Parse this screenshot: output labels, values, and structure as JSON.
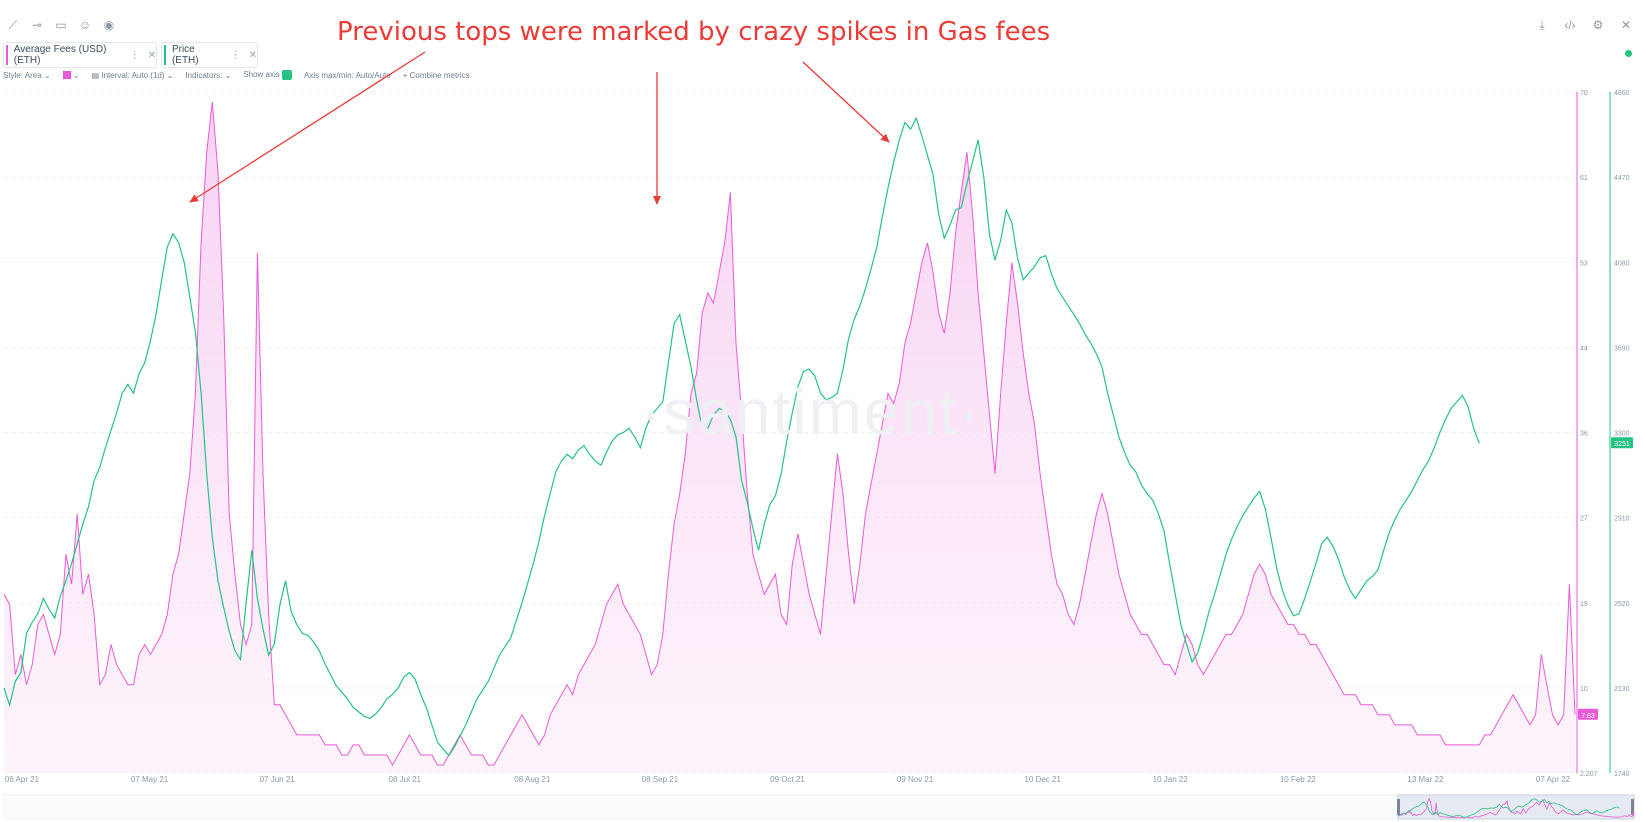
{
  "toolbar": {
    "icons": [
      "line-draw-icon",
      "horizontal-line-icon",
      "note-icon",
      "emoji-icon",
      "eye-icon"
    ],
    "right_icons": [
      "download-icon",
      "embed-code-icon",
      "settings-icon",
      "close-icon"
    ]
  },
  "tabs": [
    {
      "label": "Average Fees (USD) (ETH)",
      "color": "#e85bd8"
    },
    {
      "label": "Price (ETH)",
      "color": "#26c281"
    }
  ],
  "settings": {
    "style": "Style: Area",
    "interval": "Interval: Auto (1d)",
    "indicators": "Indicators:",
    "show_axis": "Show axis",
    "axis_minmax": "Axis max/min: Auto/Auto",
    "combine": "Combine metrics"
  },
  "annotation": "Previous tops were marked by crazy spikes in Gas fees",
  "watermark": "·santiment·",
  "chart_data": {
    "type": "area",
    "x_ticks": [
      "06 Apr 21",
      "07 May 21",
      "07 Jun 21",
      "08 Jul 21",
      "08 Aug 21",
      "08 Sep 21",
      "09 Oct 21",
      "09 Nov 21",
      "10 Dec 21",
      "10 Jan 22",
      "10 Feb 22",
      "13 Mar 22",
      "07 Apr 22"
    ],
    "fees_axis_ticks": [
      "70",
      "61",
      "53",
      "44",
      "36",
      "27",
      "19",
      "10",
      "2.207"
    ],
    "price_axis_ticks": [
      "4860",
      "4470",
      "4080",
      "3690",
      "3300",
      "2910",
      "2520",
      "2130",
      "1740"
    ],
    "fees_ylim": [
      2.207,
      70
    ],
    "price_ylim": [
      1740,
      4860
    ],
    "last_fee_label": "7.83",
    "last_price_label": "3251",
    "series": [
      {
        "name": "Average Fees (USD) (ETH)",
        "color": "#e85bd8",
        "values": [
          20,
          19,
          12,
          14,
          11,
          13,
          17,
          18,
          16,
          14,
          16,
          24,
          21,
          28,
          20,
          22,
          18,
          11,
          12,
          15,
          13,
          12,
          11,
          11,
          14,
          15,
          14,
          15,
          16,
          18,
          22,
          24,
          28,
          32,
          40,
          55,
          64,
          69,
          62,
          48,
          28,
          22,
          17,
          15,
          17,
          54,
          32,
          18,
          9,
          9,
          8,
          7,
          6,
          6,
          6,
          6,
          6,
          5,
          5,
          5,
          4,
          4,
          5,
          5,
          4,
          4,
          4,
          4,
          4,
          3,
          4,
          5,
          6,
          5,
          4,
          4,
          4,
          3,
          3,
          4,
          5,
          6,
          5,
          4,
          4,
          4,
          3,
          3,
          4,
          5,
          6,
          7,
          8,
          7,
          6,
          5,
          6,
          8,
          9,
          10,
          11,
          10,
          12,
          13,
          14,
          15,
          17,
          19,
          20,
          21,
          19,
          18,
          17,
          16,
          14,
          12,
          13,
          16,
          22,
          27,
          30,
          34,
          40,
          42,
          48,
          50,
          49,
          52,
          55,
          60,
          45,
          38,
          30,
          24,
          22,
          20,
          21,
          22,
          18,
          17,
          23,
          26,
          23,
          20,
          18,
          16,
          22,
          28,
          34,
          30,
          24,
          19,
          23,
          28,
          31,
          34,
          37,
          40,
          39,
          41,
          45,
          47,
          50,
          53,
          55,
          52,
          48,
          46,
          50,
          56,
          60,
          64,
          58,
          50,
          44,
          38,
          32,
          40,
          47,
          53,
          49,
          44,
          40,
          37,
          32,
          28,
          24,
          21,
          20,
          18,
          17,
          19,
          22,
          25,
          28,
          30,
          28,
          25,
          22,
          20,
          18,
          17,
          16,
          16,
          15,
          14,
          13,
          13,
          12,
          14,
          16,
          15,
          13,
          12,
          13,
          14,
          15,
          16,
          16,
          17,
          18,
          20,
          22,
          23,
          22,
          20,
          19,
          18,
          17,
          17,
          16,
          16,
          15,
          15,
          14,
          13,
          12,
          11,
          10,
          10,
          10,
          9,
          9,
          9,
          8,
          8,
          8,
          7,
          7,
          7,
          7,
          6,
          6,
          6,
          6,
          6,
          5,
          5,
          5,
          5,
          5,
          5,
          5,
          6,
          6,
          7,
          8,
          9,
          10,
          9,
          8,
          7,
          8,
          14,
          11,
          8,
          7,
          8,
          21,
          8
        ]
      },
      {
        "name": "Price (ETH)",
        "color": "#26c281",
        "values": [
          2130,
          2050,
          2160,
          2200,
          2380,
          2430,
          2470,
          2540,
          2490,
          2450,
          2550,
          2620,
          2700,
          2790,
          2880,
          2960,
          3080,
          3140,
          3230,
          3310,
          3390,
          3480,
          3520,
          3480,
          3570,
          3620,
          3720,
          3840,
          4000,
          4150,
          4210,
          4170,
          4080,
          3920,
          3760,
          3480,
          3110,
          2820,
          2620,
          2500,
          2390,
          2300,
          2260,
          2520,
          2760,
          2540,
          2400,
          2280,
          2330,
          2510,
          2620,
          2480,
          2420,
          2380,
          2370,
          2340,
          2300,
          2240,
          2190,
          2140,
          2110,
          2080,
          2040,
          2020,
          2000,
          1990,
          2010,
          2040,
          2080,
          2100,
          2130,
          2180,
          2200,
          2170,
          2100,
          2040,
          1960,
          1880,
          1850,
          1820,
          1860,
          1910,
          1960,
          2020,
          2080,
          2120,
          2160,
          2220,
          2280,
          2320,
          2360,
          2440,
          2520,
          2610,
          2700,
          2800,
          2920,
          3020,
          3120,
          3170,
          3200,
          3180,
          3220,
          3240,
          3200,
          3170,
          3150,
          3210,
          3260,
          3290,
          3300,
          3320,
          3280,
          3230,
          3320,
          3380,
          3410,
          3440,
          3620,
          3800,
          3840,
          3720,
          3600,
          3450,
          3320,
          3320,
          3380,
          3410,
          3400,
          3360,
          3280,
          3080,
          2980,
          2860,
          2760,
          2880,
          2970,
          3010,
          3110,
          3260,
          3390,
          3510,
          3580,
          3590,
          3560,
          3480,
          3450,
          3460,
          3480,
          3590,
          3730,
          3820,
          3880,
          3960,
          4050,
          4150,
          4290,
          4420,
          4540,
          4640,
          4720,
          4690,
          4740,
          4660,
          4570,
          4480,
          4300,
          4190,
          4250,
          4320,
          4330,
          4440,
          4540,
          4640,
          4470,
          4210,
          4090,
          4180,
          4320,
          4260,
          4100,
          4000,
          4030,
          4060,
          4100,
          4110,
          4030,
          3960,
          3920,
          3880,
          3840,
          3800,
          3750,
          3710,
          3660,
          3600,
          3480,
          3380,
          3280,
          3210,
          3150,
          3120,
          3060,
          3020,
          2990,
          2930,
          2850,
          2700,
          2560,
          2420,
          2330,
          2250,
          2290,
          2380,
          2480,
          2560,
          2650,
          2740,
          2810,
          2870,
          2920,
          2960,
          3000,
          3030,
          2950,
          2820,
          2680,
          2580,
          2510,
          2460,
          2470,
          2540,
          2620,
          2700,
          2790,
          2820,
          2780,
          2720,
          2640,
          2580,
          2540,
          2580,
          2620,
          2640,
          2670,
          2760,
          2840,
          2900,
          2950,
          2990,
          3030,
          3080,
          3130,
          3170,
          3230,
          3300,
          3360,
          3410,
          3440,
          3470,
          3420,
          3320,
          3251
        ]
      }
    ]
  }
}
